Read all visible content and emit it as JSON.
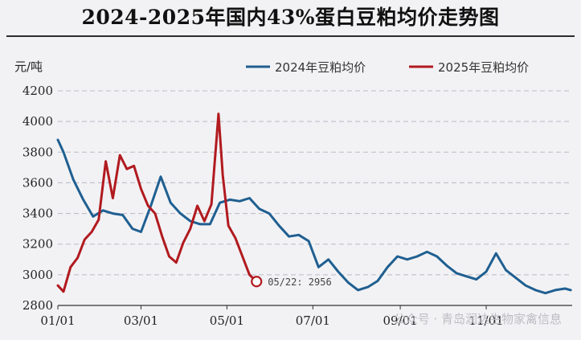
{
  "chart_data": {
    "type": "line",
    "title": "2024-2025年国内43%蛋白豆粕均价走势图",
    "ylabel": "元/吨",
    "ylim": [
      2800,
      4200
    ],
    "yticks": [
      2800,
      3000,
      3200,
      3400,
      3600,
      3800,
      4000,
      4200
    ],
    "xticks": [
      "01/01",
      "03/01",
      "05/01",
      "07/01",
      "09/01",
      "11/01"
    ],
    "grid": "horizontal dashed",
    "legend": "top-right",
    "colors": {
      "2024": "#1f5f91",
      "2025": "#b11a1f"
    },
    "series": [
      {
        "name": "2024年豆粕均价",
        "x": [
          "01/01",
          "01/05",
          "01/12",
          "01/19",
          "01/26",
          "02/02",
          "02/09",
          "02/16",
          "02/23",
          "03/01",
          "03/08",
          "03/15",
          "03/22",
          "03/29",
          "04/05",
          "04/12",
          "04/19",
          "04/26",
          "05/03",
          "05/10",
          "05/17",
          "05/24",
          "05/31",
          "06/07",
          "06/14",
          "06/21",
          "06/28",
          "07/05",
          "07/12",
          "07/19",
          "07/26",
          "08/02",
          "08/09",
          "08/16",
          "08/23",
          "08/30",
          "09/06",
          "09/13",
          "09/20",
          "09/27",
          "10/04",
          "10/11",
          "10/18",
          "10/25",
          "11/01",
          "11/08",
          "11/15",
          "11/22",
          "11/29",
          "12/06",
          "12/13",
          "12/20",
          "12/27",
          "12/31"
        ],
        "values": [
          3880,
          3800,
          3620,
          3490,
          3380,
          3420,
          3400,
          3390,
          3300,
          3280,
          3450,
          3640,
          3470,
          3400,
          3350,
          3330,
          3330,
          3470,
          3490,
          3480,
          3500,
          3430,
          3400,
          3320,
          3250,
          3260,
          3220,
          3050,
          3100,
          3020,
          2950,
          2900,
          2920,
          2960,
          3050,
          3120,
          3100,
          3120,
          3150,
          3120,
          3060,
          3010,
          2990,
          2970,
          3020,
          3140,
          3030,
          2980,
          2930,
          2900,
          2880,
          2900,
          2910,
          2900
        ]
      },
      {
        "name": "2025年豆粕均价",
        "x": [
          "01/01",
          "01/05",
          "01/10",
          "01/15",
          "01/20",
          "01/25",
          "01/30",
          "02/04",
          "02/09",
          "02/14",
          "02/19",
          "02/24",
          "03/01",
          "03/06",
          "03/11",
          "03/16",
          "03/21",
          "03/26",
          "03/31",
          "04/05",
          "04/10",
          "04/15",
          "04/20",
          "04/25",
          "04/28",
          "05/02",
          "05/07",
          "05/12",
          "05/17",
          "05/22"
        ],
        "values": [
          2930,
          2890,
          3050,
          3110,
          3230,
          3280,
          3360,
          3740,
          3500,
          3780,
          3690,
          3710,
          3560,
          3450,
          3400,
          3250,
          3120,
          3080,
          3210,
          3300,
          3450,
          3350,
          3460,
          4050,
          3650,
          3320,
          3240,
          3120,
          3000,
          2956
        ]
      }
    ],
    "annotation": {
      "x": "05/22",
      "y": 2956,
      "text": "05/22: 2956"
    }
  },
  "watermark": "公众号 · 青岛润达生物家禽信息"
}
